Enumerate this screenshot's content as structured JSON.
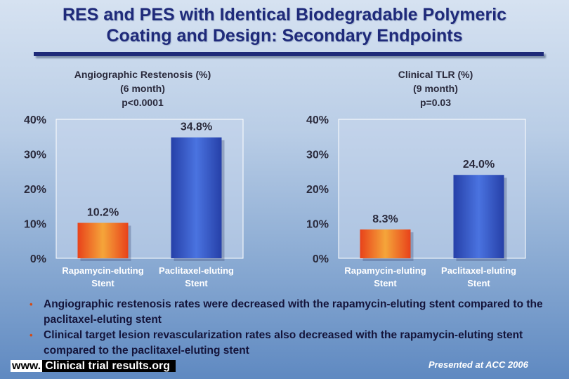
{
  "slide": {
    "title_line1": "RES and PES with Identical Biodegradable Polymeric",
    "title_line2": "Coating and Design: Secondary Endpoints",
    "bullets": [
      "Angiographic restenosis rates were decreased with the rapamycin-eluting stent compared to the paclitaxel-eluting stent",
      "Clinical target lesion revascularization rates also decreased with the rapamycin-eluting stent compared to the paclitaxel-eluting stent"
    ],
    "footer_www": "www.",
    "footer_site": "Clinical trial results.org",
    "presented": "Presented at ACC 2006"
  },
  "chart_data": [
    {
      "type": "bar",
      "title": [
        "Angiographic Restenosis (%)",
        "(6 month)",
        "p<0.0001"
      ],
      "categories": [
        [
          "Rapamycin-eluting",
          "Stent"
        ],
        [
          "Paclitaxel-eluting",
          "Stent"
        ]
      ],
      "values": [
        10.2,
        34.8
      ],
      "value_labels": [
        "10.2%",
        "34.8%"
      ],
      "yticks": [
        "0%",
        "10%",
        "20%",
        "30%",
        "40%"
      ],
      "ylim": [
        0,
        40
      ],
      "colors": [
        "#f07a18",
        "#3d66d8"
      ]
    },
    {
      "type": "bar",
      "title": [
        "Clinical TLR (%)",
        "(9 month)",
        "p=0.03"
      ],
      "categories": [
        [
          "Rapamycin-eluting",
          "Stent"
        ],
        [
          "Paclitaxel-eluting",
          "Stent"
        ]
      ],
      "values": [
        8.3,
        24.0
      ],
      "value_labels": [
        "8.3%",
        "24.0%"
      ],
      "yticks": [
        "0%",
        "10%",
        "20%",
        "30%",
        "40%"
      ],
      "ylim": [
        0,
        40
      ],
      "colors": [
        "#f07a18",
        "#3d66d8"
      ]
    }
  ]
}
